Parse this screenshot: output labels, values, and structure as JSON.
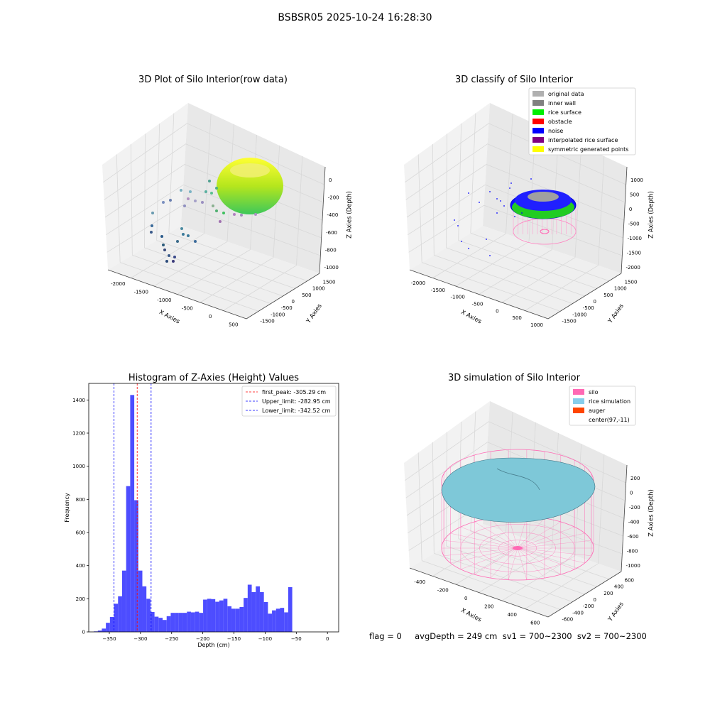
{
  "suptitle": "BSBSR05 2025-10-24 16:28:30",
  "footer": "flag = 0     avgDepth = 249 cm  sv1 = 700~2300  sv2 = 700~2300",
  "panels": {
    "raw": {
      "title": "3D Plot of Silo Interior(row data)",
      "xlabel": "X Axies",
      "ylabel": "Y Axies",
      "zlabel": "Z Axies (Depth)",
      "xticks": [
        "-2000",
        "-1500",
        "-1000",
        "-500",
        "0",
        "500"
      ],
      "yticks": [
        "-1500",
        "-1000",
        "-500",
        "0",
        "500",
        "1000",
        "1500"
      ],
      "zticks": [
        "0",
        "-200",
        "-400",
        "-600",
        "-800",
        "-1000"
      ]
    },
    "classify": {
      "title": "3D classify of Silo Interior",
      "xlabel": "X Axies",
      "ylabel": "Y Axies",
      "zlabel": "Z Axies (Depth)",
      "xticks": [
        "-2000",
        "-1500",
        "-1000",
        "-500",
        "0",
        "500",
        "1000"
      ],
      "yticks": [
        "-1500",
        "-1000",
        "-500",
        "0",
        "500",
        "1000",
        "1500"
      ],
      "zticks": [
        "1000",
        "500",
        "0",
        "-500",
        "-1000",
        "-1500",
        "-2000"
      ],
      "legend": [
        {
          "label": "original data",
          "color": "#b0b0b0"
        },
        {
          "label": "inner wall",
          "color": "#808080"
        },
        {
          "label": "rice surface",
          "color": "#00ee00"
        },
        {
          "label": "obstacle",
          "color": "#ff0000"
        },
        {
          "label": "noise",
          "color": "#0000ff"
        },
        {
          "label": "interpolated rice surface",
          "color": "#800080"
        },
        {
          "label": "symmetric generated points",
          "color": "#ffff00"
        }
      ]
    },
    "simulation": {
      "title": "3D simulation of Silo Interior",
      "xlabel": "X Axies",
      "ylabel": "Y Axies",
      "zlabel": "Z Axies (Depth)",
      "xticks": [
        "-400",
        "-200",
        "0",
        "200",
        "400",
        "600"
      ],
      "yticks": [
        "-600",
        "-400",
        "-200",
        "0",
        "200",
        "400",
        "600"
      ],
      "zticks": [
        "200",
        "0",
        "-200",
        "-400",
        "-600",
        "-800",
        "-1000"
      ],
      "legend": [
        {
          "label": "silo",
          "color": "#ff69b4"
        },
        {
          "label": "rice simulation",
          "color": "#87ceeb"
        },
        {
          "label": "auger",
          "color": "#ff4500"
        },
        {
          "label": "center(97,-11)",
          "color": null
        }
      ]
    }
  },
  "chart_data": {
    "type": "bar",
    "title": "Histogram of Z-Axies (Height) Values",
    "xlabel": "Depth (cm)",
    "ylabel": "Frequency",
    "xlim": [
      -383,
      18
    ],
    "ylim": [
      0,
      1500
    ],
    "xticks": [
      -350,
      -300,
      -250,
      -200,
      -150,
      -100,
      -50,
      0
    ],
    "yticks": [
      0,
      200,
      400,
      600,
      800,
      1000,
      1200,
      1400
    ],
    "bin_width": 6.5,
    "bins": [
      [
        -375,
        3
      ],
      [
        -368.5,
        8
      ],
      [
        -362,
        20
      ],
      [
        -355.5,
        55
      ],
      [
        -349,
        90
      ],
      [
        -342.5,
        170
      ],
      [
        -336,
        215
      ],
      [
        -329.5,
        370
      ],
      [
        -323,
        880
      ],
      [
        -316.5,
        1430
      ],
      [
        -310,
        795
      ],
      [
        -303.5,
        370
      ],
      [
        -297,
        275
      ],
      [
        -290.5,
        200
      ],
      [
        -284,
        120
      ],
      [
        -277.5,
        92
      ],
      [
        -271,
        85
      ],
      [
        -264.5,
        72
      ],
      [
        -258,
        95
      ],
      [
        -251.5,
        115
      ],
      [
        -245,
        115
      ],
      [
        -238.5,
        115
      ],
      [
        -232,
        115
      ],
      [
        -225.5,
        122
      ],
      [
        -219,
        118
      ],
      [
        -212.5,
        122
      ],
      [
        -206,
        115
      ],
      [
        -199.5,
        195
      ],
      [
        -193,
        200
      ],
      [
        -186.5,
        198
      ],
      [
        -180,
        182
      ],
      [
        -173.5,
        190
      ],
      [
        -167,
        200
      ],
      [
        -160.5,
        155
      ],
      [
        -154,
        140
      ],
      [
        -147.5,
        140
      ],
      [
        -141,
        150
      ],
      [
        -134.5,
        205
      ],
      [
        -128,
        285
      ],
      [
        -121.5,
        240
      ],
      [
        -115,
        275
      ],
      [
        -108.5,
        240
      ],
      [
        -102,
        180
      ],
      [
        -95.5,
        110
      ],
      [
        -89,
        130
      ],
      [
        -82.5,
        140
      ],
      [
        -76,
        145
      ],
      [
        -69.5,
        118
      ],
      [
        -63,
        270
      ]
    ],
    "vlines": [
      {
        "label": "first_peak: -305.29 cm",
        "x": -305.29,
        "color": "#ff0000"
      },
      {
        "label": "Upper_limit: -282.95 cm",
        "x": -282.95,
        "color": "#0000ff"
      },
      {
        "label": "Lower_limit: -342.52 cm",
        "x": -342.52,
        "color": "#0000ff"
      }
    ],
    "bar_color": "#4d4dff"
  }
}
